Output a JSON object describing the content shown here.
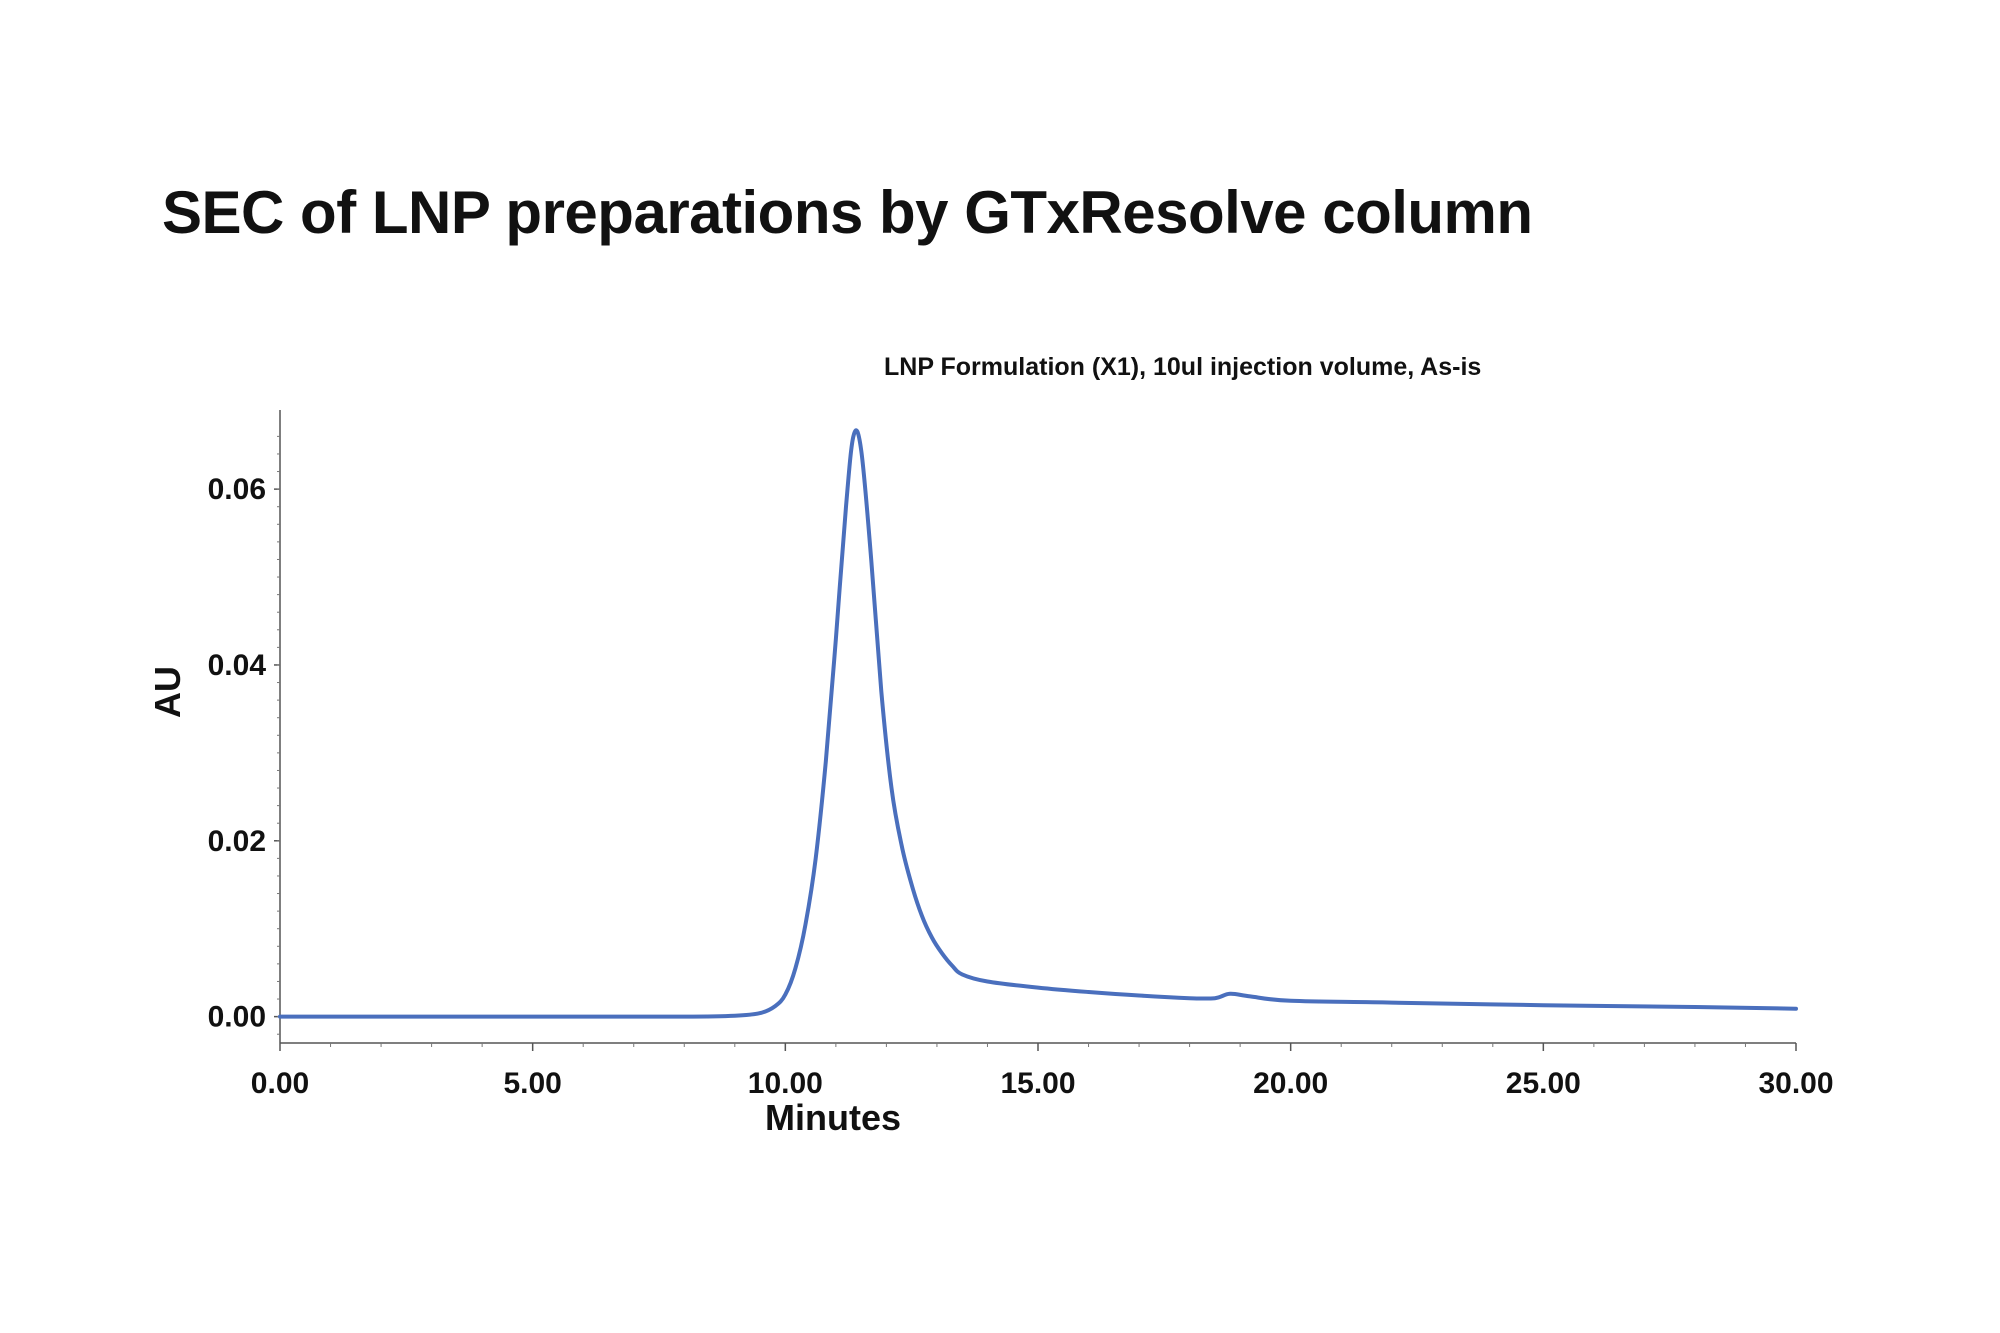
{
  "header": {
    "title": "SEC of LNP preparations by GTxResolve column"
  },
  "chart_data": {
    "type": "line",
    "title": "LNP Formulation (X1), 10ul injection volume, As-is",
    "xlabel": "Minutes",
    "ylabel": "AU",
    "xlim": [
      0,
      30
    ],
    "ylim": [
      -0.003,
      0.069
    ],
    "x_ticks": [
      "0.00",
      "5.00",
      "10.00",
      "15.00",
      "20.00",
      "25.00",
      "30.00"
    ],
    "y_ticks": [
      "0.00",
      "0.02",
      "0.04",
      "0.06"
    ],
    "grid": false,
    "legend": "none",
    "line_color": "#4a6fbd",
    "series": [
      {
        "x": [
          0,
          2,
          4,
          6,
          8,
          9.0,
          9.5,
          9.8,
          10.0,
          10.2,
          10.4,
          10.6,
          10.8,
          11.0,
          11.2,
          11.35,
          11.5,
          11.7,
          11.9,
          12.1,
          12.3,
          12.5,
          12.7,
          12.9,
          13.1,
          13.3,
          13.5,
          14.0,
          15.0,
          16.0,
          17.0,
          18.0,
          18.5,
          18.8,
          19.2,
          20.0,
          22.0,
          25.0,
          28.0,
          30.0
        ],
        "y": [
          0.0,
          0.0,
          0.0,
          0.0,
          0.0,
          0.0001,
          0.0004,
          0.0012,
          0.0025,
          0.0055,
          0.0105,
          0.018,
          0.029,
          0.043,
          0.058,
          0.0661,
          0.0645,
          0.052,
          0.037,
          0.026,
          0.0195,
          0.015,
          0.0115,
          0.009,
          0.0072,
          0.0058,
          0.0048,
          0.004,
          0.0033,
          0.0028,
          0.0024,
          0.0021,
          0.0021,
          0.0026,
          0.0023,
          0.0018,
          0.0016,
          0.0013,
          0.0011,
          0.0009
        ]
      }
    ]
  }
}
